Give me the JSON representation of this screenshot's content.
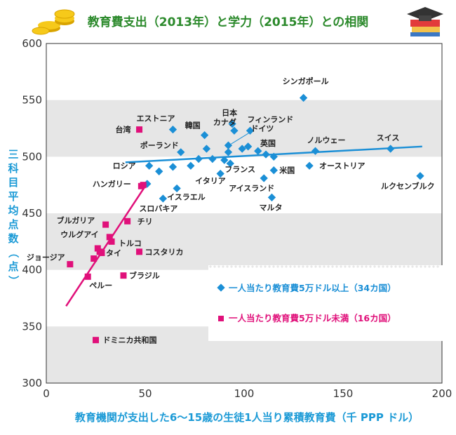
{
  "chart_data": {
    "type": "scatter",
    "title": "教育費支出（2013年）と学力（2015年）との相関",
    "xlabel": "教育機関が支出した6～15歳の生徒1人当り累積教育費（千 PPP ドル）",
    "ylabel": "三科目平均点数（点）",
    "xlim": [
      0,
      200
    ],
    "ylim": [
      300,
      600
    ],
    "x_ticks": [
      0,
      50,
      100,
      150,
      200
    ],
    "y_ticks": [
      300,
      350,
      400,
      450,
      500,
      550,
      600
    ],
    "band_color": "#e6e6e6",
    "series": [
      {
        "name": "一人当たり教育費5万ドル以上（34カ国）",
        "marker": "diamond",
        "color": "#1b8fd6",
        "points": [
          {
            "label": "シンガポール",
            "x": 130,
            "y": 552
          },
          {
            "label": "日本",
            "x": 94,
            "y": 529
          },
          {
            "label": "エストニア",
            "x": 64,
            "y": 524
          },
          {
            "label": "フィンランド",
            "x": 103,
            "y": 523
          },
          {
            "label": "韓国",
            "x": 80,
            "y": 519
          },
          {
            "label": "カナダ",
            "x": 95,
            "y": 523
          },
          {
            "label": "ドイツ",
            "x": 92,
            "y": 510
          },
          {
            "label": "ポーランド",
            "x": 68,
            "y": 504
          },
          {
            "label": "スイス",
            "x": 174,
            "y": 507
          },
          {
            "label": "ノルウェー",
            "x": 136,
            "y": 505
          },
          {
            "label": "英国",
            "x": 111,
            "y": 502
          },
          {
            "label": "オーストリア",
            "x": 133,
            "y": 492
          },
          {
            "label": "ルクセンブルク",
            "x": 189,
            "y": 483
          },
          {
            "label": "ロシア",
            "x": 52,
            "y": 492
          },
          {
            "label": "フランス",
            "x": 93,
            "y": 494
          },
          {
            "label": "米国",
            "x": 115,
            "y": 488
          },
          {
            "label": "イタリア",
            "x": 88,
            "y": 485
          },
          {
            "label": "アイスランド",
            "x": 110,
            "y": 481
          },
          {
            "label": "ハンガリー",
            "x": 51,
            "y": 476
          },
          {
            "label": "イスラエル",
            "x": 66,
            "y": 472
          },
          {
            "label": "スロバキア",
            "x": 59,
            "y": 463
          },
          {
            "label": "マルタ",
            "x": 114,
            "y": 464
          },
          {
            "label": "",
            "x": 57,
            "y": 487
          },
          {
            "label": "",
            "x": 64,
            "y": 491
          },
          {
            "label": "",
            "x": 73,
            "y": 492
          },
          {
            "label": "",
            "x": 77,
            "y": 498
          },
          {
            "label": "",
            "x": 81,
            "y": 507
          },
          {
            "label": "",
            "x": 84,
            "y": 498
          },
          {
            "label": "",
            "x": 90,
            "y": 497
          },
          {
            "label": "",
            "x": 92,
            "y": 504
          },
          {
            "label": "",
            "x": 99,
            "y": 507
          },
          {
            "label": "",
            "x": 102,
            "y": 509
          },
          {
            "label": "",
            "x": 107,
            "y": 505
          },
          {
            "label": "",
            "x": 115,
            "y": 500
          }
        ],
        "trend": {
          "x0": 40,
          "y0": 495,
          "x1": 190,
          "y1": 509
        }
      },
      {
        "name": "一人当たり教育費5万ドル未満（16カ国）",
        "marker": "square",
        "color": "#e0107a",
        "points": [
          {
            "label": "台湾",
            "x": 47,
            "y": 524
          },
          {
            "label": "ハンガリー",
            "x": 49,
            "y": 475
          },
          {
            "label": "チリ",
            "x": 41,
            "y": 443
          },
          {
            "label": "ブルガリア",
            "x": 30,
            "y": 440
          },
          {
            "label": "ウルグアイ",
            "x": 32,
            "y": 429
          },
          {
            "label": "トルコ",
            "x": 33,
            "y": 425
          },
          {
            "label": "ジョージア",
            "x": 12,
            "y": 405
          },
          {
            "label": "タイ",
            "x": 28,
            "y": 415
          },
          {
            "label": "コスタリカ",
            "x": 47,
            "y": 416
          },
          {
            "label": "ブラジル",
            "x": 39,
            "y": 395
          },
          {
            "label": "ペルー",
            "x": 21,
            "y": 394
          },
          {
            "label": "ドミニカ共和国",
            "x": 25,
            "y": 338
          },
          {
            "label": "",
            "x": 26,
            "y": 419
          },
          {
            "label": "",
            "x": 27,
            "y": 416
          },
          {
            "label": "",
            "x": 24,
            "y": 410
          },
          {
            "label": "",
            "x": 48,
            "y": 474
          }
        ],
        "trend": {
          "x0": 10,
          "y0": 368,
          "x1": 50,
          "y1": 474
        }
      }
    ]
  }
}
